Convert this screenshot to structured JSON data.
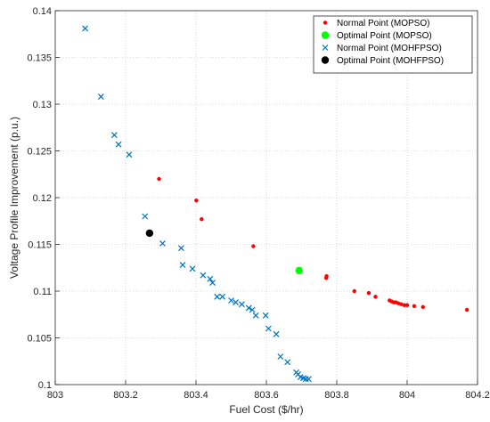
{
  "chart_data": {
    "type": "scatter",
    "title": "",
    "xlabel": "Fuel Cost ($/hr)",
    "ylabel": "Voltage Profile Improvement (p.u.)",
    "xlim": [
      803,
      804.2
    ],
    "ylim": [
      0.1,
      0.14
    ],
    "xticks": [
      "803",
      "803.2",
      "803.4",
      "803.6",
      "803.8",
      "804",
      "804.2"
    ],
    "yticks": [
      "0.1",
      "0.105",
      "0.11",
      "0.115",
      "0.12",
      "0.125",
      "0.13",
      "0.135",
      "0.14"
    ],
    "grid": true,
    "grid_style": "dotted",
    "legend_position": "top-right",
    "series": [
      {
        "name": "Normal Point (MOPSO)",
        "marker": "dot",
        "color": "#ff0000",
        "points": [
          [
            803.295,
            0.122
          ],
          [
            803.401,
            0.1197
          ],
          [
            803.416,
            0.1177
          ],
          [
            803.563,
            0.1148
          ],
          [
            803.77,
            0.1114
          ],
          [
            803.771,
            0.1116
          ],
          [
            803.85,
            0.11
          ],
          [
            803.891,
            0.1098
          ],
          [
            803.91,
            0.1094
          ],
          [
            803.95,
            0.109
          ],
          [
            803.956,
            0.1089
          ],
          [
            803.962,
            0.1088
          ],
          [
            803.968,
            0.1088
          ],
          [
            803.975,
            0.1087
          ],
          [
            803.983,
            0.1086
          ],
          [
            803.992,
            0.1085
          ],
          [
            804.0,
            0.1085
          ],
          [
            804.02,
            0.1084
          ],
          [
            804.045,
            0.1083
          ],
          [
            804.17,
            0.108
          ]
        ]
      },
      {
        "name": "Optimal Point (MOPSO)",
        "marker": "filled-circle",
        "color": "#00ff00",
        "points": [
          [
            803.693,
            0.1122
          ]
        ]
      },
      {
        "name": "Normal Point (MOHFPSO)",
        "marker": "x",
        "color": "#0072bd",
        "points": [
          [
            803.085,
            0.1381
          ],
          [
            803.13,
            0.1308
          ],
          [
            803.168,
            0.1267
          ],
          [
            803.18,
            0.1257
          ],
          [
            803.21,
            0.1246
          ],
          [
            803.255,
            0.118
          ],
          [
            803.305,
            0.1151
          ],
          [
            803.358,
            0.1146
          ],
          [
            803.362,
            0.1128
          ],
          [
            803.39,
            0.1124
          ],
          [
            803.42,
            0.1117
          ],
          [
            803.44,
            0.1113
          ],
          [
            803.447,
            0.1109
          ],
          [
            803.46,
            0.1094
          ],
          [
            803.475,
            0.1094
          ],
          [
            803.5,
            0.109
          ],
          [
            803.513,
            0.1088
          ],
          [
            803.53,
            0.1086
          ],
          [
            803.55,
            0.1082
          ],
          [
            803.56,
            0.108
          ],
          [
            803.57,
            0.1074
          ],
          [
            803.598,
            0.1074
          ],
          [
            803.606,
            0.106
          ],
          [
            803.628,
            0.1054
          ],
          [
            803.64,
            0.103
          ],
          [
            803.66,
            0.1024
          ],
          [
            803.685,
            0.1013
          ],
          [
            803.69,
            0.1011
          ],
          [
            803.697,
            0.1008
          ],
          [
            803.705,
            0.1007
          ],
          [
            803.712,
            0.1006
          ],
          [
            803.72,
            0.1006
          ]
        ]
      },
      {
        "name": "Optimal Point (MOHFPSO)",
        "marker": "filled-circle",
        "color": "#000000",
        "points": [
          [
            803.268,
            0.1162
          ]
        ]
      }
    ]
  }
}
